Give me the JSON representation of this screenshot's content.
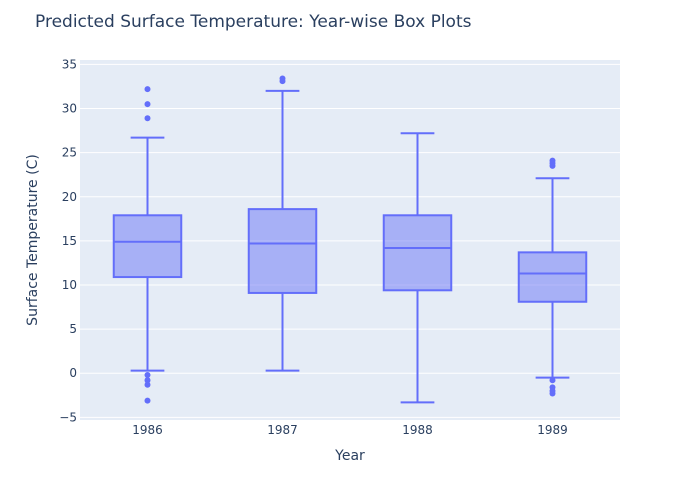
{
  "chart_data": {
    "type": "box",
    "title": "Predicted Surface Temperature: Year-wise Box Plots",
    "xlabel": "Year",
    "ylabel": "Surface Temperature (C)",
    "ylim": [
      -5.3,
      35.5
    ],
    "yticks": [
      -5,
      0,
      5,
      10,
      15,
      20,
      25,
      30,
      35
    ],
    "grid": true,
    "legend": "none",
    "colors": {
      "box_fill": "#6a74f6",
      "box_stroke": "#636efa",
      "plot_bg": "#e5ecf6",
      "grid": "#ffffff",
      "text": "#2a3f5f"
    },
    "categories": [
      "1986",
      "1987",
      "1988",
      "1989"
    ],
    "boxes": [
      {
        "category": "1986",
        "lowerfence": 0.3,
        "q1": 10.9,
        "median": 14.9,
        "q3": 17.9,
        "upperfence": 26.7,
        "outliers": [
          32.2,
          30.5,
          28.9,
          -0.2,
          -0.8,
          -1.3,
          -3.1
        ]
      },
      {
        "category": "1987",
        "lowerfence": 0.3,
        "q1": 9.1,
        "median": 14.7,
        "q3": 18.6,
        "upperfence": 32.0,
        "outliers": [
          33.4,
          33.1
        ]
      },
      {
        "category": "1988",
        "lowerfence": -3.3,
        "q1": 9.4,
        "median": 14.2,
        "q3": 17.9,
        "upperfence": 27.2,
        "outliers": []
      },
      {
        "category": "1989",
        "lowerfence": -0.5,
        "q1": 8.1,
        "median": 11.3,
        "q3": 13.7,
        "upperfence": 22.1,
        "outliers": [
          24.1,
          23.8,
          23.5,
          -0.8,
          -1.6,
          -2.0,
          -2.3
        ]
      }
    ]
  }
}
